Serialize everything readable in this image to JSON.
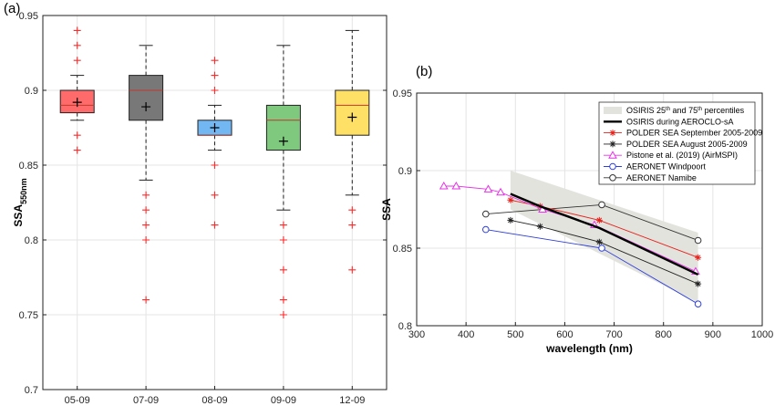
{
  "chart_data": [
    {
      "type": "box",
      "panel_label": "(a)",
      "ylabel_main": "SSA",
      "ylabel_sub": "550nm",
      "categories": [
        "05-09",
        "07-09",
        "08-09",
        "09-09",
        "12-09"
      ],
      "ylim": [
        0.7,
        0.95
      ],
      "yticks": [
        0.7,
        0.75,
        0.8,
        0.85,
        0.9,
        0.95
      ],
      "ytick_labels": [
        "0.7",
        "0.75",
        "0.8",
        "0.85",
        "0.9",
        "0.95"
      ],
      "grid": true,
      "boxes": [
        {
          "category": "05-09",
          "color": "#ff6b6b",
          "whisker_low": 0.88,
          "q1": 0.885,
          "median": 0.89,
          "q3": 0.9,
          "whisker_high": 0.91,
          "mean": 0.892,
          "outliers": [
            0.94,
            0.93,
            0.92,
            0.87,
            0.86
          ]
        },
        {
          "category": "07-09",
          "color": "#787878",
          "whisker_low": 0.84,
          "q1": 0.88,
          "median": 0.9,
          "q3": 0.91,
          "whisker_high": 0.93,
          "mean": 0.889,
          "outliers": [
            0.83,
            0.82,
            0.81,
            0.8,
            0.76
          ]
        },
        {
          "category": "08-09",
          "color": "#72b7f2",
          "whisker_low": 0.86,
          "q1": 0.87,
          "median": 0.87,
          "q3": 0.88,
          "whisker_high": 0.89,
          "mean": 0.875,
          "outliers": [
            0.92,
            0.91,
            0.9,
            0.85,
            0.83,
            0.81
          ]
        },
        {
          "category": "09-09",
          "color": "#7fc97f",
          "whisker_low": 0.82,
          "q1": 0.86,
          "median": 0.88,
          "q3": 0.89,
          "whisker_high": 0.93,
          "mean": 0.866,
          "outliers": [
            0.81,
            0.8,
            0.78,
            0.76,
            0.75
          ]
        },
        {
          "category": "12-09",
          "color": "#ffe066",
          "whisker_low": 0.83,
          "q1": 0.87,
          "median": 0.89,
          "q3": 0.9,
          "whisker_high": 0.94,
          "mean": 0.882,
          "outliers": [
            0.82,
            0.81,
            0.78
          ]
        }
      ]
    },
    {
      "type": "line",
      "panel_label": "(b)",
      "xlabel": "wavelength (nm)",
      "ylabel": "SSA",
      "xlim": [
        300,
        1000
      ],
      "ylim": [
        0.8,
        0.95
      ],
      "xticks": [
        300,
        400,
        500,
        600,
        700,
        800,
        900,
        1000
      ],
      "xtick_labels": [
        "300",
        "400",
        "500",
        "600",
        "700",
        "800",
        "900",
        "1000"
      ],
      "yticks": [
        0.8,
        0.85,
        0.9,
        0.95
      ],
      "ytick_labels": [
        "0.8",
        "0.85",
        "0.9",
        "0.95"
      ],
      "grid": true,
      "legend_placement": "top-right",
      "band": {
        "name_pre": "OSIRIS 25",
        "name_sup1": "th",
        "name_mid": " and 75",
        "name_sup2": "th",
        "name_post": " percentiles",
        "color": "#e3e3de",
        "x": [
          490,
          870
        ],
        "upper": [
          0.9,
          0.86
        ],
        "lower": [
          0.875,
          0.815
        ]
      },
      "series": [
        {
          "name": "OSIRIS during AEROCLO-sA",
          "color": "#000000",
          "marker": "none",
          "width": 2.4,
          "x": [
            490,
            550,
            670,
            870
          ],
          "y": [
            0.885,
            0.877,
            0.863,
            0.833
          ]
        },
        {
          "name": "POLDER SEA September 2005-2009",
          "color": "#e8211b",
          "marker": "star",
          "width": 0.9,
          "x": [
            490,
            550,
            670,
            870
          ],
          "y": [
            0.881,
            0.877,
            0.868,
            0.844
          ]
        },
        {
          "name": "POLDER SEA August 2005-2009",
          "color": "#222222",
          "marker": "asterisk",
          "width": 0.9,
          "x": [
            490,
            550,
            670,
            870
          ],
          "y": [
            0.868,
            0.864,
            0.854,
            0.827
          ]
        },
        {
          "name": "Pistone et al. (2019) (AirMSPI)",
          "color": "#e633e6",
          "marker": "triangle",
          "width": 0.9,
          "x": [
            355,
            380,
            445,
            470,
            555,
            660,
            865
          ],
          "y": [
            0.89,
            0.89,
            0.888,
            0.886,
            0.875,
            0.865,
            0.835
          ]
        },
        {
          "name": "AERONET Windpoort",
          "color": "#2e3fd9",
          "marker": "circle",
          "width": 0.9,
          "x": [
            440,
            675,
            870
          ],
          "y": [
            0.862,
            0.85,
            0.814
          ]
        },
        {
          "name": "AERONET Namibe",
          "color": "#333333",
          "marker": "circle",
          "width": 0.9,
          "x": [
            440,
            675,
            870
          ],
          "y": [
            0.872,
            0.878,
            0.855
          ]
        }
      ]
    }
  ]
}
